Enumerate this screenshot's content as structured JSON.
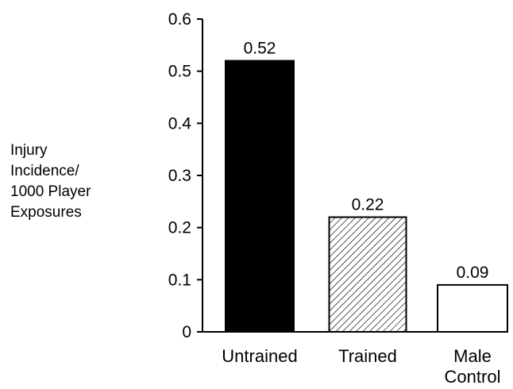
{
  "chart_data": {
    "type": "bar",
    "categories": [
      [
        "Untrained"
      ],
      [
        "Trained"
      ],
      [
        "Male",
        "Control"
      ]
    ],
    "values": [
      0.52,
      0.22,
      0.09
    ],
    "data_labels": [
      "0.52",
      "0.22",
      "0.09"
    ],
    "fills": [
      "solid-black",
      "diagonal-hatch",
      "white"
    ],
    "ylabel": [
      "Injury",
      "Incidence/",
      "1000 Player",
      "Exposures"
    ],
    "yticks": [
      "0",
      "0.1",
      "0.2",
      "0.3",
      "0.4",
      "0.5",
      "0.6"
    ],
    "ylim": [
      0,
      0.6
    ],
    "grid": false,
    "legend": "none"
  }
}
